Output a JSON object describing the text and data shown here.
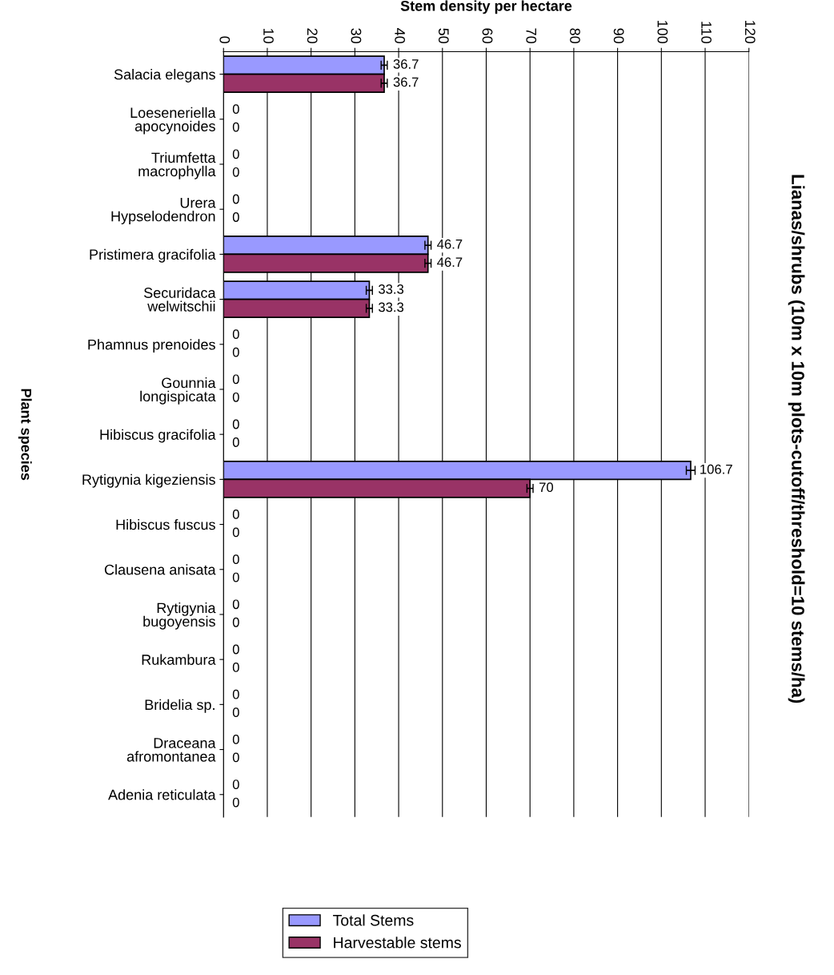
{
  "chart_data": {
    "type": "bar",
    "orientation": "horizontal",
    "title": "Lianas/shrubs (10m x 10m plots-cutoff/threshold=10 stems/ha)",
    "xlabel": "Stem density per hectare",
    "ylabel": "Plant species",
    "categories": [
      "Salacia elegans",
      "Loeseneriella\napocynoides",
      "Triumfetta\nmacrophylla",
      "Urera\nHypselodendron",
      "Pristimera gracifolia",
      "Securidaca\nwelwitschii",
      "Phamnus prenoides",
      "Gounnia\nlongispicata",
      "Hibiscus gracifolia",
      "Rytigynia kigeziensis",
      "Hibiscus fuscus",
      "Clausena anisata",
      "Rytigynia\nbugoyensis",
      "Rukambura",
      "Bridelia sp.",
      "Draceana\nafromontanea",
      "Adenia reticulata"
    ],
    "series": [
      {
        "name": "Total Stems",
        "color": "#9999ff",
        "values": [
          36.7,
          0,
          0,
          0,
          46.7,
          33.3,
          0,
          0,
          0,
          106.7,
          0,
          0,
          0,
          0,
          0,
          0,
          0
        ],
        "errors": [
          0.7,
          null,
          null,
          null,
          0.7,
          0.7,
          null,
          null,
          null,
          1,
          null,
          null,
          null,
          null,
          null,
          null,
          null
        ]
      },
      {
        "name": "Harvestable stems",
        "color": "#993366",
        "values": [
          36.7,
          0,
          0,
          0,
          46.7,
          33.3,
          0,
          0,
          0,
          70,
          0,
          0,
          0,
          0,
          0,
          0,
          0
        ],
        "errors": [
          0.7,
          null,
          null,
          null,
          0.7,
          0.7,
          null,
          null,
          null,
          0.7,
          null,
          null,
          null,
          null,
          null,
          null,
          null
        ]
      }
    ],
    "xlim": [
      0,
      120
    ],
    "xticks": [
      0,
      10,
      20,
      30,
      40,
      50,
      60,
      70,
      80,
      90,
      100,
      110,
      120
    ],
    "grid": "x",
    "legend": "bottom",
    "data_labels": true
  }
}
